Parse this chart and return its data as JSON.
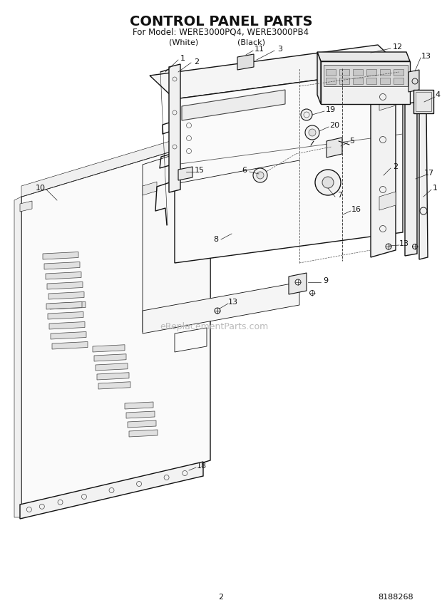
{
  "title": "CONTROL PANEL PARTS",
  "subtitle": "For Model: WERE3000PQ4, WERE3000PB4",
  "subtitle2_white": "(White)",
  "subtitle2_black": "(Black)",
  "page_number": "2",
  "part_number": "8188268",
  "watermark": "eReplacementParts.com",
  "bg_color": "#ffffff",
  "lc": "#111111",
  "lc_light": "#555555",
  "lc_mid": "#333333"
}
